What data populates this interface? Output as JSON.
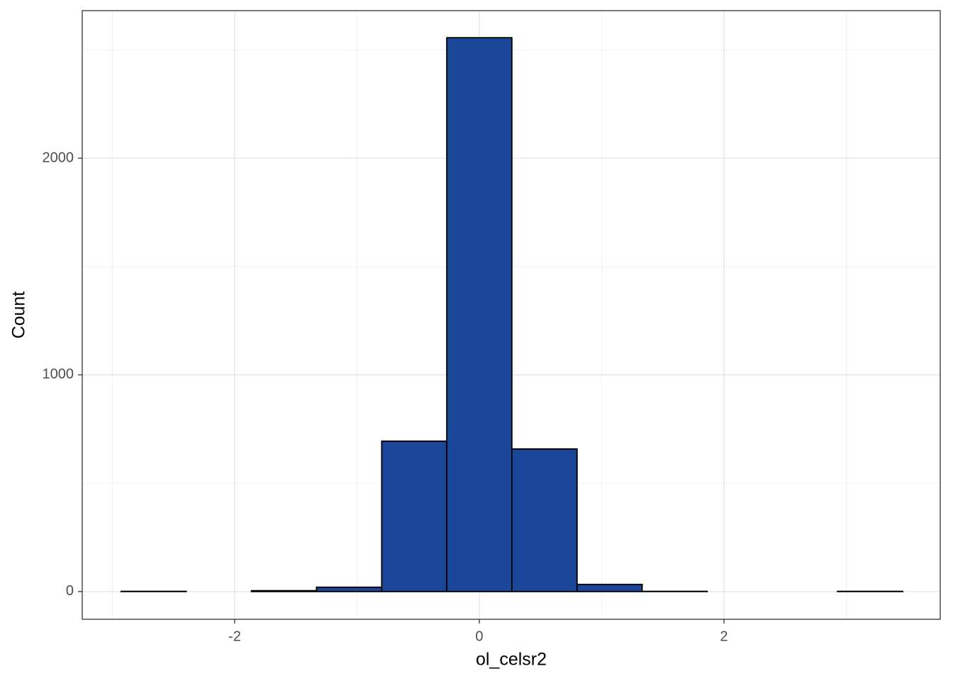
{
  "chart_data": {
    "type": "histogram",
    "x_label": "ol_celsr2",
    "y_label": "Count",
    "bins": [
      -2.928,
      -2.396,
      -1.863,
      -1.331,
      -0.798,
      -0.266,
      0.266,
      0.799,
      1.331,
      1.863,
      2.396,
      2.928,
      3.461
    ],
    "counts": [
      1,
      0,
      4,
      20,
      694,
      2556,
      658,
      33,
      1,
      0,
      0,
      1
    ],
    "color": "#1a4698",
    "edge_color": "#000000",
    "xlim": [
      -3.246,
      3.768
    ],
    "ylim": [
      -128,
      2681
    ],
    "xticks": [
      -2,
      0,
      2
    ],
    "yticks": [
      0,
      1000,
      2000
    ],
    "x_minor_ticks": [
      -3,
      -1,
      1,
      3
    ],
    "y_minor_ticks": [
      500,
      1500,
      2500
    ],
    "grid": true
  }
}
